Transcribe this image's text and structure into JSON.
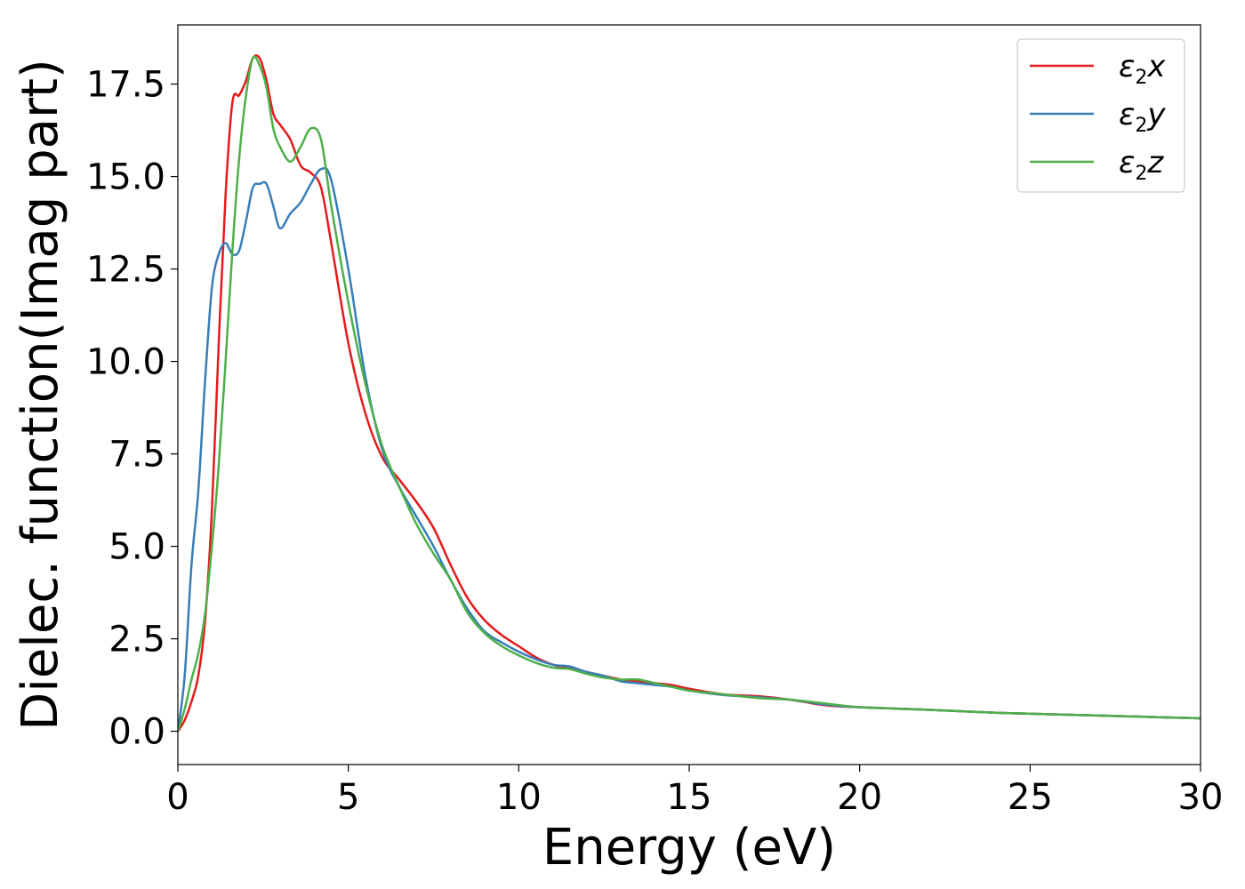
{
  "chart_data": {
    "type": "line",
    "xlabel": "Energy (eV)",
    "ylabel": "Dielec. function(Imag part)",
    "xlim": [
      0,
      30
    ],
    "ylim": [
      -0.9,
      19.1
    ],
    "xticks": [
      0,
      5,
      10,
      15,
      20,
      25,
      30
    ],
    "xtick_labels": [
      "0",
      "5",
      "10",
      "15",
      "20",
      "25",
      "30"
    ],
    "yticks": [
      0.0,
      2.5,
      5.0,
      7.5,
      10.0,
      12.5,
      15.0,
      17.5
    ],
    "ytick_labels": [
      "0.0",
      "2.5",
      "5.0",
      "7.5",
      "10.0",
      "12.5",
      "15.0",
      "17.5"
    ],
    "grid": false,
    "legend_position": "top-right",
    "series": [
      {
        "name": "ε2x",
        "legend_base": "ε",
        "legend_sub": "2",
        "legend_var": "x",
        "color": "#e41a1c",
        "x": [
          0,
          0.2,
          0.4,
          0.6,
          0.8,
          1.0,
          1.2,
          1.4,
          1.6,
          1.8,
          2.0,
          2.2,
          2.4,
          2.6,
          2.8,
          3.0,
          3.3,
          3.6,
          3.9,
          4.2,
          4.5,
          5.0,
          5.5,
          6.0,
          6.5,
          7.0,
          7.5,
          8.0,
          8.5,
          9.0,
          9.5,
          10.0,
          10.5,
          11.0,
          11.5,
          12.0,
          12.5,
          13.0,
          13.5,
          14.0,
          14.5,
          15.0,
          16.0,
          17.0,
          18.0,
          19.0,
          20.0,
          22.0,
          24.0,
          26.0,
          28.0,
          30.0
        ],
        "y": [
          0.0,
          0.3,
          0.8,
          1.5,
          3.0,
          6.0,
          10.5,
          14.5,
          17.0,
          17.2,
          17.6,
          18.2,
          18.2,
          17.6,
          16.7,
          16.4,
          16.0,
          15.3,
          15.1,
          14.7,
          13.2,
          10.5,
          8.6,
          7.4,
          6.8,
          6.2,
          5.5,
          4.5,
          3.6,
          3.0,
          2.6,
          2.3,
          2.0,
          1.8,
          1.7,
          1.6,
          1.5,
          1.4,
          1.35,
          1.3,
          1.25,
          1.15,
          1.0,
          0.95,
          0.85,
          0.7,
          0.65,
          0.58,
          0.5,
          0.45,
          0.4,
          0.35
        ]
      },
      {
        "name": "ε2y",
        "legend_base": "ε",
        "legend_sub": "2",
        "legend_var": "y",
        "color": "#377eb8",
        "x": [
          0,
          0.2,
          0.4,
          0.6,
          0.8,
          1.0,
          1.2,
          1.4,
          1.6,
          1.8,
          2.0,
          2.2,
          2.4,
          2.6,
          2.8,
          3.0,
          3.3,
          3.6,
          3.9,
          4.2,
          4.5,
          5.0,
          5.5,
          6.0,
          6.5,
          7.0,
          7.5,
          8.0,
          8.5,
          9.0,
          9.5,
          10.0,
          10.5,
          11.0,
          11.5,
          12.0,
          12.5,
          13.0,
          13.5,
          14.0,
          14.5,
          15.0,
          16.0,
          17.0,
          18.0,
          19.0,
          20.0,
          22.0,
          24.0,
          26.0,
          28.0,
          30.0
        ],
        "y": [
          0.0,
          1.5,
          4.5,
          6.5,
          9.5,
          12.0,
          12.9,
          13.2,
          12.9,
          13.0,
          13.8,
          14.7,
          14.8,
          14.8,
          14.2,
          13.6,
          14.0,
          14.3,
          14.8,
          15.2,
          14.9,
          12.5,
          9.6,
          7.6,
          6.6,
          5.8,
          5.0,
          4.1,
          3.3,
          2.7,
          2.4,
          2.15,
          1.95,
          1.8,
          1.75,
          1.6,
          1.5,
          1.35,
          1.3,
          1.25,
          1.2,
          1.1,
          0.98,
          0.92,
          0.85,
          0.72,
          0.65,
          0.58,
          0.5,
          0.45,
          0.4,
          0.35
        ]
      },
      {
        "name": "ε2z",
        "legend_base": "ε",
        "legend_sub": "2",
        "legend_var": "z",
        "color": "#4daf4a",
        "x": [
          0,
          0.2,
          0.4,
          0.6,
          0.8,
          1.0,
          1.2,
          1.4,
          1.6,
          1.8,
          2.0,
          2.2,
          2.4,
          2.6,
          2.8,
          3.0,
          3.3,
          3.6,
          3.9,
          4.2,
          4.5,
          5.0,
          5.5,
          6.0,
          6.5,
          7.0,
          7.5,
          8.0,
          8.5,
          9.0,
          9.5,
          10.0,
          10.5,
          11.0,
          11.5,
          12.0,
          12.5,
          13.0,
          13.5,
          14.0,
          14.5,
          15.0,
          16.0,
          17.0,
          18.0,
          19.0,
          20.0,
          22.0,
          24.0,
          26.0,
          28.0,
          30.0
        ],
        "y": [
          0.0,
          0.6,
          1.4,
          2.1,
          3.2,
          5.0,
          7.2,
          10.0,
          13.0,
          15.5,
          17.2,
          18.2,
          18.0,
          17.4,
          16.3,
          15.8,
          15.4,
          15.8,
          16.3,
          16.0,
          14.2,
          11.6,
          9.4,
          7.7,
          6.6,
          5.6,
          4.8,
          4.1,
          3.2,
          2.65,
          2.3,
          2.05,
          1.85,
          1.72,
          1.68,
          1.55,
          1.45,
          1.4,
          1.4,
          1.3,
          1.2,
          1.1,
          1.0,
          0.9,
          0.85,
          0.75,
          0.65,
          0.58,
          0.5,
          0.45,
          0.4,
          0.35
        ]
      }
    ]
  }
}
